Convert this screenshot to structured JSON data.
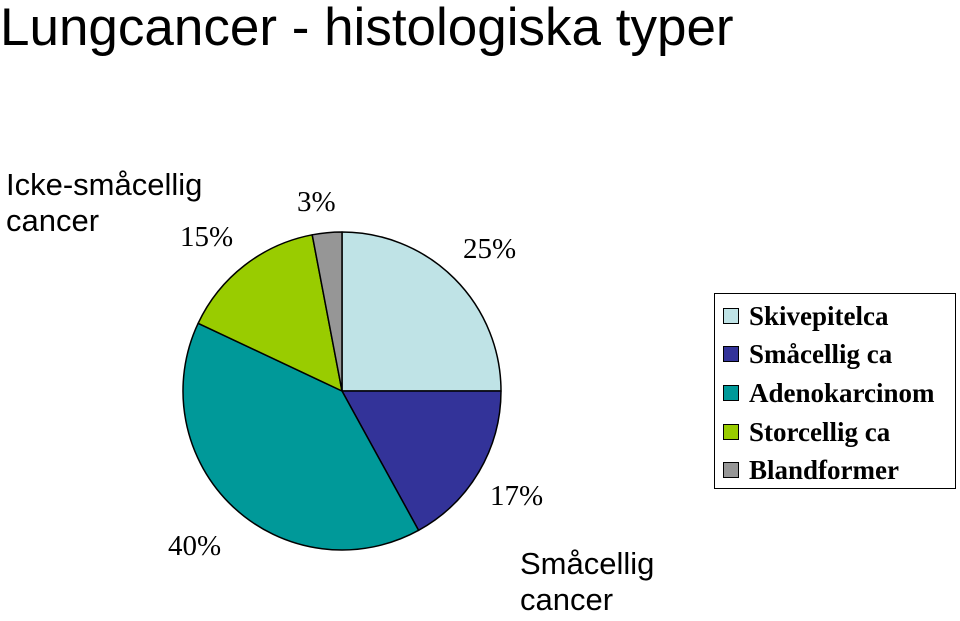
{
  "chart_data": {
    "type": "pie",
    "title": "Lungcancer - histologiska typer",
    "categories": [
      "Skivepitelca",
      "Småcellig ca",
      "Adenokarcinom",
      "Storcellig ca",
      "Blandformer"
    ],
    "values": [
      25,
      17,
      40,
      15,
      3
    ],
    "value_labels": [
      "25%",
      "17%",
      "40%",
      "15%",
      "3%"
    ],
    "colors": [
      "#bfe3e6",
      "#333399",
      "#009999",
      "#99cc00",
      "#969696"
    ],
    "start_angle_deg": 0,
    "direction": "clockwise",
    "legend_placement": "right",
    "annotations": {
      "non_small_cell": [
        "Icke-småcellig",
        "cancer"
      ],
      "small_cell": [
        "Småcellig",
        "cancer"
      ]
    }
  }
}
